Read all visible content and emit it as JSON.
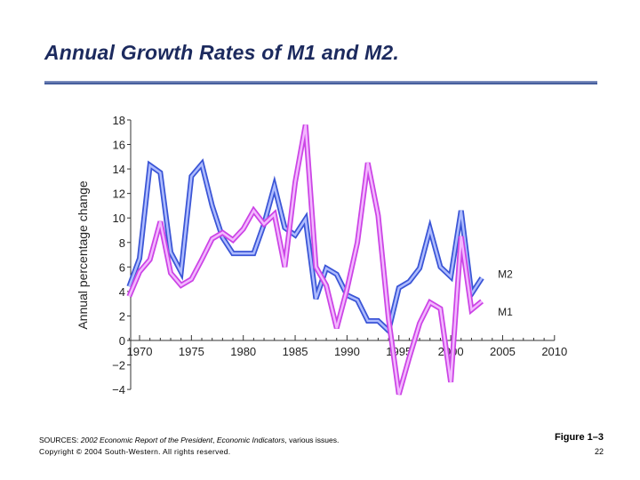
{
  "title": "Annual Growth Rates of M1 and M2.",
  "footer": {
    "sources_prefix": "SOURCES: ",
    "sources_italic1": "2002 Economic Report of the President",
    "sources_mid": ", ",
    "sources_italic2": "Economic Indicators",
    "sources_suffix": ", various issues.",
    "copyright": "Copyright © 2004 South-Western. All rights reserved.",
    "figure": "Figure 1–3",
    "page": "22"
  },
  "chart_data": {
    "type": "line",
    "title": "",
    "xlabel": "",
    "ylabel": "Annual percentage change",
    "xlim": [
      1970,
      2010
    ],
    "ylim": [
      -4,
      18
    ],
    "xticks": [
      "1970",
      "1975",
      "1980",
      "1985",
      "1990",
      "1995",
      "2000",
      "2005",
      "2010"
    ],
    "yticks": [
      "−4",
      "−2",
      "0",
      "2",
      "4",
      "6",
      "8",
      "10",
      "12",
      "14",
      "16",
      "18"
    ],
    "grid": false,
    "legend": "inline labels at right end of series",
    "x": [
      1969,
      1970,
      1971,
      1972,
      1973,
      1974,
      1975,
      1976,
      1977,
      1978,
      1979,
      1980,
      1981,
      1982,
      1983,
      1984,
      1985,
      1986,
      1987,
      1988,
      1989,
      1990,
      1991,
      1992,
      1993,
      1994,
      1995,
      1996,
      1997,
      1998,
      1999,
      2000,
      2001,
      2002,
      2003
    ],
    "series": [
      {
        "name": "M2",
        "color": "#3b55d6",
        "values": [
          4.4,
          6.7,
          14.3,
          13.7,
          7.2,
          5.6,
          13.4,
          14.4,
          11.0,
          8.4,
          7.1,
          7.1,
          7.1,
          9.5,
          12.6,
          9.2,
          8.6,
          9.9,
          3.4,
          5.9,
          5.4,
          3.7,
          3.3,
          1.6,
          1.6,
          0.8,
          4.3,
          4.8,
          5.9,
          9.1,
          6.0,
          5.2,
          10.6,
          3.8,
          5.1
        ]
      },
      {
        "name": "M1",
        "color": "#cc44e6",
        "values": [
          3.6,
          5.6,
          6.6,
          9.7,
          5.5,
          4.5,
          5.0,
          6.6,
          8.3,
          8.8,
          8.2,
          9.1,
          10.6,
          9.5,
          10.3,
          6.0,
          12.9,
          17.6,
          6.0,
          4.5,
          1.0,
          4.2,
          8.0,
          14.5,
          10.2,
          1.8,
          -4.4,
          -1.4,
          1.4,
          3.1,
          2.6,
          -3.4,
          8.5,
          2.5,
          3.2
        ]
      }
    ]
  }
}
